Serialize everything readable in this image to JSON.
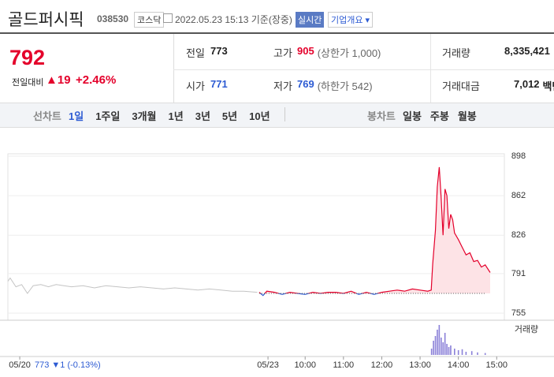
{
  "header": {
    "name": "골드퍼시픽",
    "code": "038530",
    "market": "코스닥",
    "datetime": "2022.05.23 15:13 기준(장중)",
    "realtime": "실시간",
    "company_info": "기업개요"
  },
  "quote": {
    "price": "792",
    "change_label": "전일대비",
    "change": "19",
    "change_rate": "+2.46%",
    "cells": [
      {
        "label": "전일",
        "value": "773"
      },
      {
        "label": "고가",
        "value": "905",
        "note": "(상한가 1,000)"
      },
      {
        "label": "거래량",
        "value": "8,335,421"
      },
      {
        "label": "시가",
        "value": "771"
      },
      {
        "label": "저가",
        "value": "769",
        "note": "(하한가 542)"
      },
      {
        "label": "거래대금",
        "value": "7,012",
        "note": "백만"
      }
    ]
  },
  "tabs": {
    "line_label": "선차트",
    "line_periods": [
      "1일",
      "1주일",
      "3개월",
      "1년",
      "3년",
      "5년",
      "10년"
    ],
    "candle_label": "봉차트",
    "candle_periods": [
      "일봉",
      "주봉",
      "월봉"
    ]
  },
  "chart_data": {
    "type": "line",
    "ylim": [
      755,
      898
    ],
    "yticks": [
      755,
      791,
      826,
      862,
      898
    ],
    "xlim": [
      2.24,
      15.2
    ],
    "xticks": [
      {
        "value": 2.55,
        "label": "05/20"
      },
      {
        "value": 9.03,
        "label": "05/23"
      },
      {
        "value": 10,
        "label": "10:00"
      },
      {
        "value": 11,
        "label": "11:00"
      },
      {
        "value": 12,
        "label": "12:00"
      },
      {
        "value": 13,
        "label": "13:00"
      },
      {
        "value": 14,
        "label": "14:00"
      },
      {
        "value": 15,
        "label": "15:00"
      }
    ],
    "baseline": 773,
    "prev_summary": "773 ▼1 (-0.13%)",
    "series": [
      {
        "color": "#c4c4c4",
        "x": [
          2.24,
          2.3,
          2.45,
          2.6,
          2.75,
          2.9,
          3.1,
          3.3,
          3.5,
          3.7,
          3.9,
          4.2,
          4.5,
          4.8,
          5.1,
          5.4,
          5.7,
          6.0,
          6.3,
          6.6,
          6.9,
          7.2,
          7.5,
          7.8,
          8.1,
          8.4,
          8.75
        ],
        "values": [
          784,
          787,
          779,
          781,
          773,
          780,
          781,
          779,
          781,
          780,
          779,
          780,
          778,
          780,
          779,
          778,
          779,
          778,
          777,
          778,
          777,
          776,
          777,
          776,
          775,
          775,
          774
        ]
      },
      {
        "color": "#e4002b",
        "below_color": "#2d5bd3",
        "fill": "#fde3e6",
        "x": [
          8.8,
          8.9,
          9.0,
          9.2,
          9.4,
          9.6,
          9.8,
          10.0,
          10.2,
          10.4,
          10.6,
          10.8,
          11.0,
          11.2,
          11.4,
          11.6,
          11.8,
          12.0,
          12.2,
          12.4,
          12.6,
          12.8,
          13.0,
          13.2,
          13.29,
          13.33,
          13.4,
          13.45,
          13.5,
          13.55,
          13.6,
          13.65,
          13.7,
          13.75,
          13.8,
          13.85,
          13.9,
          14.0,
          14.1,
          14.2,
          14.3,
          14.4,
          14.5,
          14.6,
          14.7,
          14.83
        ],
        "values": [
          774,
          771,
          775,
          774,
          772,
          774,
          773,
          772,
          774,
          773,
          774,
          774,
          773,
          775,
          772,
          774,
          772,
          774,
          775,
          776,
          775,
          777,
          776,
          775,
          776,
          800,
          830,
          870,
          888,
          860,
          826,
          868,
          862,
          832,
          845,
          840,
          828,
          822,
          815,
          808,
          810,
          802,
          803,
          797,
          799,
          792
        ]
      }
    ],
    "volume": {
      "name": "거래량",
      "color": "#8a80d8",
      "y2lim": [
        0,
        100
      ],
      "x": [
        13.3,
        13.35,
        13.4,
        13.45,
        13.5,
        13.55,
        13.6,
        13.65,
        13.7,
        13.75,
        13.8,
        13.9,
        14.0,
        14.1,
        14.2,
        14.35,
        14.5,
        14.7
      ],
      "values": [
        20,
        45,
        60,
        80,
        95,
        55,
        40,
        70,
        35,
        25,
        30,
        20,
        15,
        18,
        10,
        12,
        8,
        6
      ]
    }
  }
}
